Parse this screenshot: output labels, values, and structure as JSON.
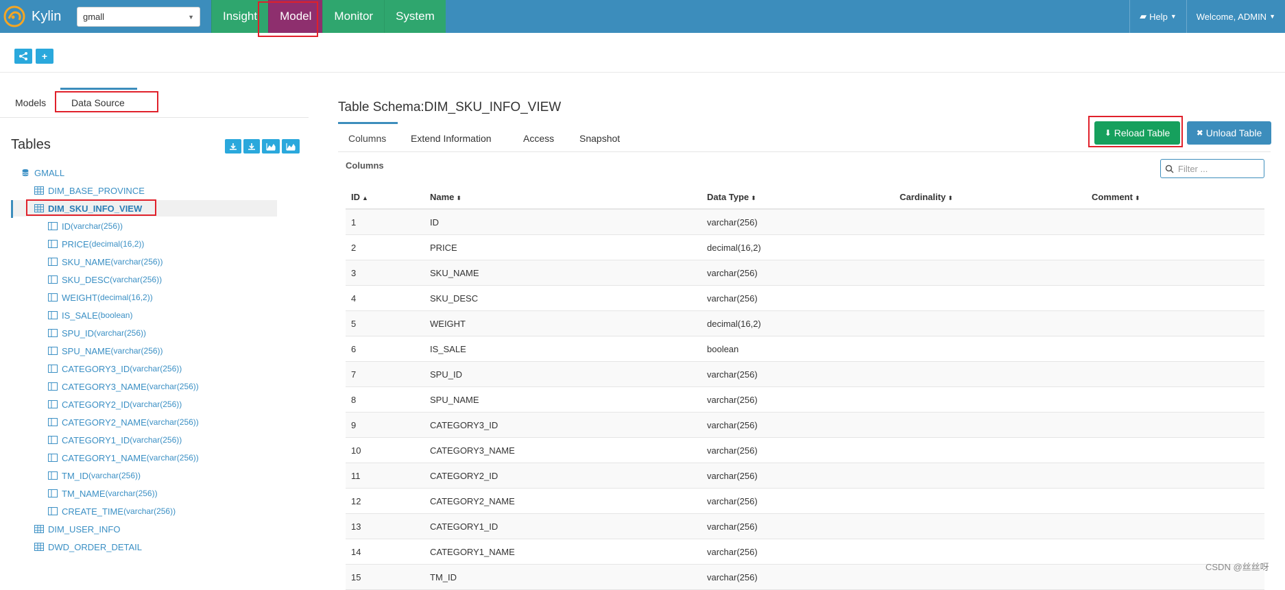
{
  "app": {
    "brand": "Kylin",
    "project": "gmall"
  },
  "nav": {
    "tabs": [
      "Insight",
      "Model",
      "Monitor",
      "System"
    ],
    "active_tab": "Model",
    "help_label": "Help",
    "welcome_label": "Welcome, ADMIN"
  },
  "toolbar": {
    "buttons": [
      "model-wizard",
      "add"
    ]
  },
  "sidebar": {
    "tabs": {
      "models": "Models",
      "data_source": "Data Source"
    },
    "tables_title": "Tables",
    "database": "GMALL",
    "tables_before": [
      "DIM_BASE_PROVINCE"
    ],
    "selected_table": "DIM_SKU_INFO_VIEW",
    "columns": [
      {
        "name": "ID",
        "type": "(varchar(256))"
      },
      {
        "name": "PRICE",
        "type": "(decimal(16,2))"
      },
      {
        "name": "SKU_NAME",
        "type": "(varchar(256))"
      },
      {
        "name": "SKU_DESC",
        "type": "(varchar(256))"
      },
      {
        "name": "WEIGHT",
        "type": "(decimal(16,2))"
      },
      {
        "name": "IS_SALE",
        "type": "(boolean)"
      },
      {
        "name": "SPU_ID",
        "type": "(varchar(256))"
      },
      {
        "name": "SPU_NAME",
        "type": "(varchar(256))"
      },
      {
        "name": "CATEGORY3_ID",
        "type": "(varchar(256))"
      },
      {
        "name": "CATEGORY3_NAME",
        "type": "(varchar(256))"
      },
      {
        "name": "CATEGORY2_ID",
        "type": "(varchar(256))"
      },
      {
        "name": "CATEGORY2_NAME",
        "type": "(varchar(256))"
      },
      {
        "name": "CATEGORY1_ID",
        "type": "(varchar(256))"
      },
      {
        "name": "CATEGORY1_NAME",
        "type": "(varchar(256))"
      },
      {
        "name": "TM_ID",
        "type": "(varchar(256))"
      },
      {
        "name": "TM_NAME",
        "type": "(varchar(256))"
      },
      {
        "name": "CREATE_TIME",
        "type": "(varchar(256))"
      }
    ],
    "tables_after": [
      "DIM_USER_INFO",
      "DWD_ORDER_DETAIL"
    ]
  },
  "detail": {
    "title": "Table Schema:DIM_SKU_INFO_VIEW",
    "tabs": [
      "Columns",
      "Extend Information",
      "Access",
      "Snapshot"
    ],
    "reload_label": "Reload Table",
    "unload_label": "Unload Table",
    "columns_label": "Columns",
    "filter_placeholder": "Filter ...",
    "headers": [
      "ID",
      "Name",
      "Data Type",
      "Cardinality",
      "Comment"
    ],
    "rows": [
      [
        "1",
        "ID",
        "varchar(256)"
      ],
      [
        "2",
        "PRICE",
        "decimal(16,2)"
      ],
      [
        "3",
        "SKU_NAME",
        "varchar(256)"
      ],
      [
        "4",
        "SKU_DESC",
        "varchar(256)"
      ],
      [
        "5",
        "WEIGHT",
        "decimal(16,2)"
      ],
      [
        "6",
        "IS_SALE",
        "boolean"
      ],
      [
        "7",
        "SPU_ID",
        "varchar(256)"
      ],
      [
        "8",
        "SPU_NAME",
        "varchar(256)"
      ],
      [
        "9",
        "CATEGORY3_ID",
        "varchar(256)"
      ],
      [
        "10",
        "CATEGORY3_NAME",
        "varchar(256)"
      ],
      [
        "11",
        "CATEGORY2_ID",
        "varchar(256)"
      ],
      [
        "12",
        "CATEGORY2_NAME",
        "varchar(256)"
      ],
      [
        "13",
        "CATEGORY1_ID",
        "varchar(256)"
      ],
      [
        "14",
        "CATEGORY1_NAME",
        "varchar(256)"
      ],
      [
        "15",
        "TM_ID",
        "varchar(256)"
      ]
    ]
  },
  "watermark": "CSDN @丝丝呀",
  "colors": {
    "nav_blue": "#3c8dbc",
    "nav_green": "#2fa66e",
    "model_active": "#8e2f6e",
    "reload_green": "#16a05d",
    "highlight_red": "#e0202a"
  }
}
